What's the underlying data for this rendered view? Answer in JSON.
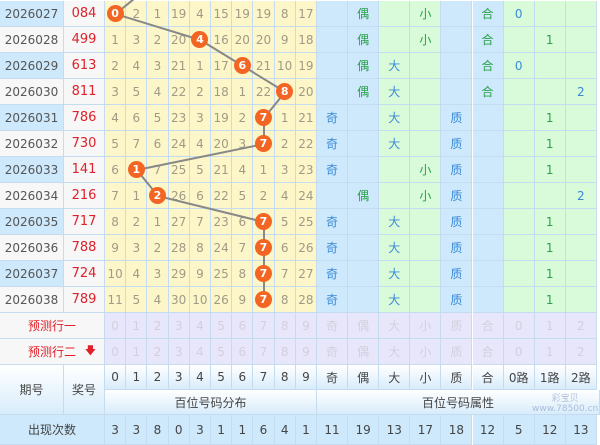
{
  "rows": [
    {
      "issue": "2026027",
      "number": "084",
      "digit": 0,
      "miss": [
        0,
        2,
        1,
        19,
        4,
        15,
        19,
        19,
        8,
        17
      ],
      "attrs": [
        "",
        "偶",
        "",
        "小",
        "",
        "合",
        "0",
        "",
        ""
      ]
    },
    {
      "issue": "2026028",
      "number": "499",
      "digit": 4,
      "miss": [
        1,
        3,
        2,
        20,
        4,
        16,
        20,
        20,
        9,
        18
      ],
      "attrs": [
        "",
        "偶",
        "",
        "小",
        "",
        "合",
        "",
        "1",
        ""
      ]
    },
    {
      "issue": "2026029",
      "number": "613",
      "digit": 6,
      "miss": [
        2,
        4,
        3,
        21,
        1,
        17,
        6,
        21,
        10,
        19
      ],
      "attrs": [
        "",
        "偶",
        "大",
        "",
        "",
        "合",
        "0",
        "",
        ""
      ]
    },
    {
      "issue": "2026030",
      "number": "811",
      "digit": 8,
      "miss": [
        3,
        5,
        4,
        22,
        2,
        18,
        1,
        22,
        8,
        20
      ],
      "attrs": [
        "",
        "偶",
        "大",
        "",
        "",
        "合",
        "",
        "",
        "2"
      ]
    },
    {
      "issue": "2026031",
      "number": "786",
      "digit": 7,
      "miss": [
        4,
        6,
        5,
        23,
        3,
        19,
        2,
        7,
        1,
        21
      ],
      "attrs": [
        "奇",
        "",
        "大",
        "",
        "质",
        "",
        "",
        "1",
        ""
      ]
    },
    {
      "issue": "2026032",
      "number": "730",
      "digit": 7,
      "miss": [
        5,
        7,
        6,
        24,
        4,
        20,
        3,
        7,
        2,
        22
      ],
      "attrs": [
        "奇",
        "",
        "大",
        "",
        "质",
        "",
        "",
        "1",
        ""
      ]
    },
    {
      "issue": "2026033",
      "number": "141",
      "digit": 1,
      "miss": [
        6,
        1,
        7,
        25,
        5,
        21,
        4,
        1,
        3,
        23
      ],
      "attrs": [
        "奇",
        "",
        "",
        "小",
        "质",
        "",
        "",
        "1",
        ""
      ]
    },
    {
      "issue": "2026034",
      "number": "216",
      "digit": 2,
      "miss": [
        7,
        1,
        2,
        26,
        6,
        22,
        5,
        2,
        4,
        24
      ],
      "attrs": [
        "",
        "偶",
        "",
        "小",
        "质",
        "",
        "",
        "",
        "2"
      ]
    },
    {
      "issue": "2026035",
      "number": "717",
      "digit": 7,
      "miss": [
        8,
        2,
        1,
        27,
        7,
        23,
        6,
        7,
        5,
        25
      ],
      "attrs": [
        "奇",
        "",
        "大",
        "",
        "质",
        "",
        "",
        "1",
        ""
      ]
    },
    {
      "issue": "2026036",
      "number": "788",
      "digit": 7,
      "miss": [
        9,
        3,
        2,
        28,
        8,
        24,
        7,
        7,
        6,
        26
      ],
      "attrs": [
        "奇",
        "",
        "大",
        "",
        "质",
        "",
        "",
        "1",
        ""
      ]
    },
    {
      "issue": "2026037",
      "number": "724",
      "digit": 7,
      "miss": [
        10,
        4,
        3,
        29,
        9,
        25,
        8,
        7,
        7,
        27
      ],
      "attrs": [
        "奇",
        "",
        "大",
        "",
        "质",
        "",
        "",
        "1",
        ""
      ]
    },
    {
      "issue": "2026038",
      "number": "789",
      "digit": 7,
      "miss": [
        11,
        5,
        4,
        30,
        10,
        26,
        9,
        7,
        8,
        28
      ],
      "attrs": [
        "奇",
        "",
        "大",
        "",
        "质",
        "",
        "",
        "1",
        ""
      ]
    }
  ],
  "attr_colors": [
    "blue",
    "green",
    "blue",
    "green",
    "blue",
    "green",
    "blue",
    "green",
    "blue"
  ],
  "predict": {
    "row1_label": "预测行一",
    "row2_label": "预测行二",
    "arrow_icon": "arrow-down-icon"
  },
  "header": {
    "issue": "期号",
    "number": "奖号",
    "digits": [
      "0",
      "1",
      "2",
      "3",
      "4",
      "5",
      "6",
      "7",
      "8",
      "9"
    ],
    "attrs": [
      "奇",
      "偶",
      "大",
      "小",
      "质",
      "合",
      "0路",
      "1路",
      "2路"
    ],
    "group_dist": "百位号码分布",
    "group_attr": "百位号码属性"
  },
  "stats": {
    "label": "出现次数",
    "values": [
      "3",
      "3",
      "8",
      "0",
      "3",
      "1",
      "1",
      "6",
      "4",
      "1",
      "11",
      "19",
      "13",
      "17",
      "18",
      "12",
      "5",
      "12",
      "13"
    ]
  },
  "colors": {
    "ball": "#f26522",
    "number": "#e0202a",
    "digit_bg": "#fdf6c8",
    "blue_bg": "#cde9fb",
    "green_bg": "#d9fbd9",
    "predict_bg": "#e8e6fa"
  },
  "watermark": {
    "line1": "彩宝贝",
    "line2": "www.78500.cn"
  }
}
